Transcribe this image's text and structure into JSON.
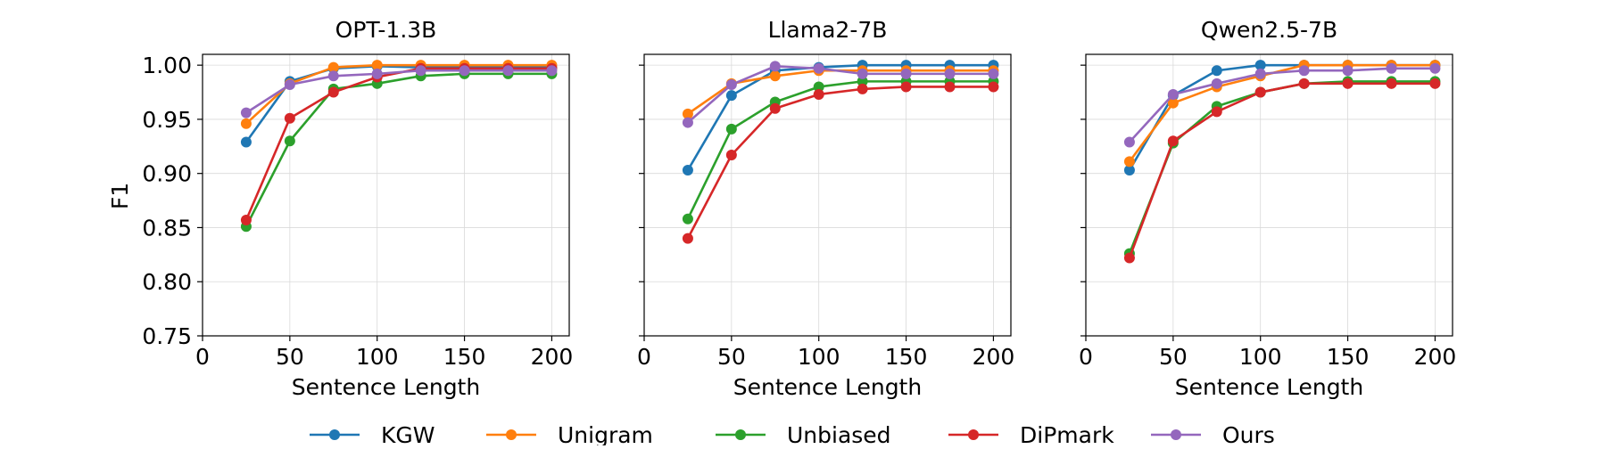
{
  "chart_data": {
    "type": "line",
    "ylabel": "F1",
    "xlabel": "Sentence Length",
    "xlim": [
      0,
      210
    ],
    "ylim": [
      0.75,
      1.01
    ],
    "xticks": [
      0,
      50,
      100,
      150,
      200
    ],
    "yticks": [
      "0.75",
      "0.80",
      "0.85",
      "0.90",
      "0.95",
      "1.00"
    ],
    "x": [
      25,
      50,
      75,
      100,
      125,
      150,
      175,
      200
    ],
    "legend": [
      {
        "name": "KGW",
        "color": "#1f77b4"
      },
      {
        "name": "Unigram",
        "color": "#ff7f0e"
      },
      {
        "name": "Unbiased",
        "color": "#2ca02c"
      },
      {
        "name": "DiPmark",
        "color": "#d62728"
      },
      {
        "name": "Ours",
        "color": "#9467bd"
      }
    ],
    "panels": [
      {
        "title": "OPT-1.3B",
        "series": [
          {
            "name": "KGW",
            "values": [
              0.929,
              0.985,
              0.997,
              0.999,
              0.998,
              0.998,
              0.998,
              0.998
            ]
          },
          {
            "name": "Unigram",
            "values": [
              0.946,
              0.983,
              0.998,
              1.0,
              1.0,
              1.0,
              1.0,
              1.0
            ]
          },
          {
            "name": "Unbiased",
            "values": [
              0.851,
              0.93,
              0.978,
              0.983,
              0.99,
              0.992,
              0.992,
              0.992
            ]
          },
          {
            "name": "DiPmark",
            "values": [
              0.857,
              0.951,
              0.975,
              0.989,
              0.997,
              0.997,
              0.997,
              0.997
            ]
          },
          {
            "name": "Ours",
            "values": [
              0.956,
              0.982,
              0.99,
              0.992,
              0.995,
              0.995,
              0.995,
              0.995
            ]
          }
        ]
      },
      {
        "title": "Llama2-7B",
        "series": [
          {
            "name": "KGW",
            "values": [
              0.903,
              0.972,
              0.995,
              0.998,
              1.0,
              1.0,
              1.0,
              1.0
            ]
          },
          {
            "name": "Unigram",
            "values": [
              0.955,
              0.983,
              0.99,
              0.995,
              0.995,
              0.995,
              0.995,
              0.995
            ]
          },
          {
            "name": "Unbiased",
            "values": [
              0.858,
              0.941,
              0.966,
              0.98,
              0.985,
              0.985,
              0.985,
              0.985
            ]
          },
          {
            "name": "DiPmark",
            "values": [
              0.84,
              0.917,
              0.96,
              0.973,
              0.978,
              0.98,
              0.98,
              0.98
            ]
          },
          {
            "name": "Ours",
            "values": [
              0.947,
              0.982,
              0.999,
              0.997,
              0.992,
              0.992,
              0.992,
              0.992
            ]
          }
        ]
      },
      {
        "title": "Qwen2.5-7B",
        "series": [
          {
            "name": "KGW",
            "values": [
              0.903,
              0.972,
              0.995,
              1.0,
              1.0,
              1.0,
              1.0,
              1.0
            ]
          },
          {
            "name": "Unigram",
            "values": [
              0.911,
              0.965,
              0.98,
              0.99,
              1.0,
              1.0,
              1.0,
              1.0
            ]
          },
          {
            "name": "Unbiased",
            "values": [
              0.826,
              0.928,
              0.962,
              0.975,
              0.983,
              0.985,
              0.985,
              0.985
            ]
          },
          {
            "name": "DiPmark",
            "values": [
              0.822,
              0.93,
              0.957,
              0.975,
              0.983,
              0.983,
              0.983,
              0.983
            ]
          },
          {
            "name": "Ours",
            "values": [
              0.929,
              0.973,
              0.983,
              0.992,
              0.995,
              0.995,
              0.997,
              0.997
            ]
          }
        ]
      }
    ]
  }
}
